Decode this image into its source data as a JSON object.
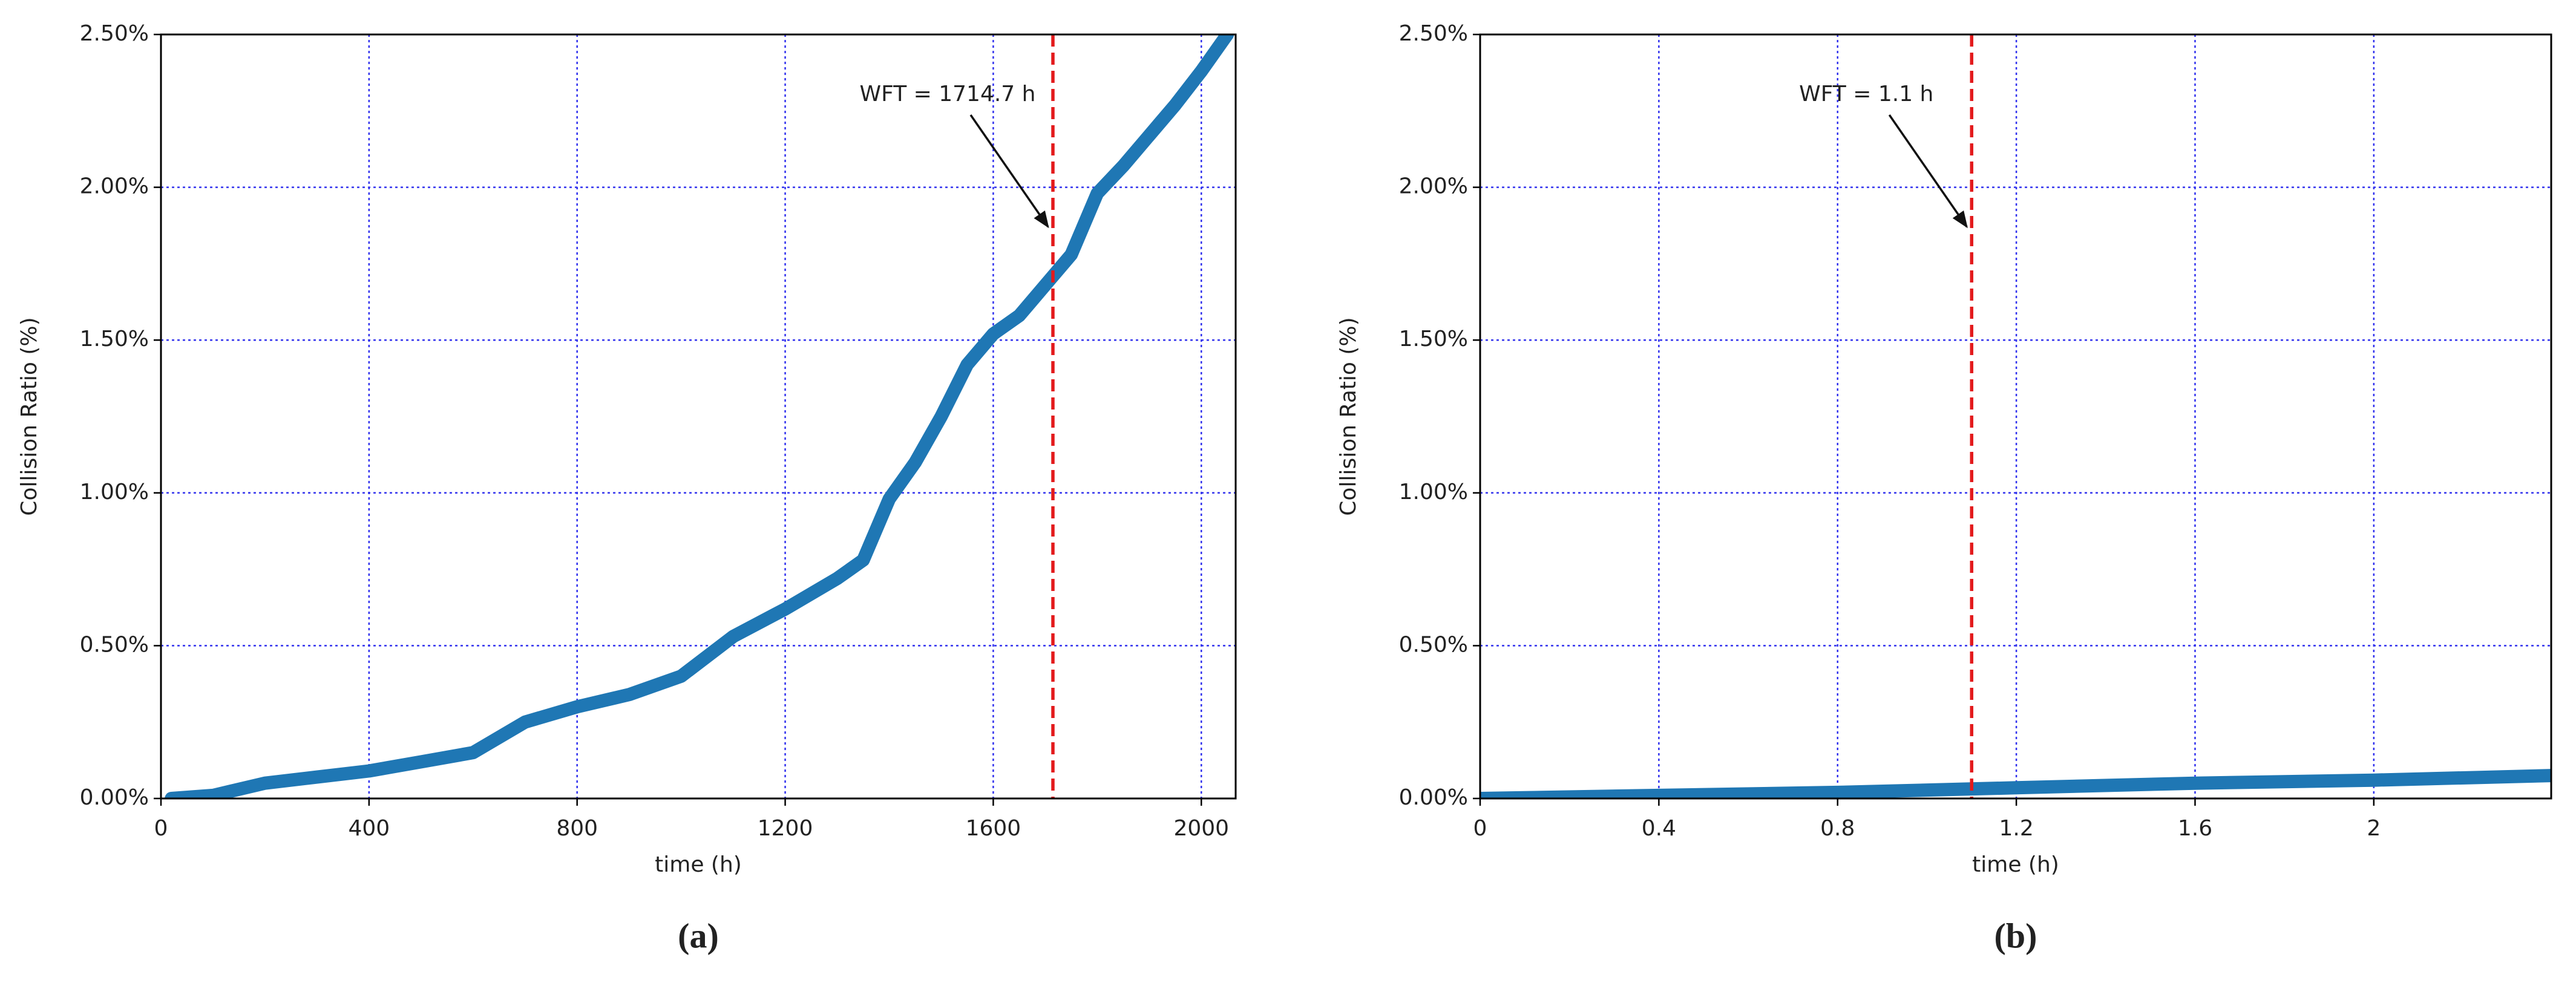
{
  "chart_data": [
    {
      "type": "line",
      "xlabel": "time (h)",
      "ylabel": "Collision Ratio (%)",
      "panel_label": "(a)",
      "xlim": [
        0,
        2066
      ],
      "xticks": [
        0,
        400,
        800,
        1200,
        1600,
        2000
      ],
      "ylim": [
        0,
        2.5
      ],
      "yticks": [
        {
          "value": 0,
          "label": "0.00%"
        },
        {
          "value": 0.5,
          "label": "0.50%"
        },
        {
          "value": 1,
          "label": "1.00%"
        },
        {
          "value": 1.5,
          "label": "1.50%"
        },
        {
          "value": 2,
          "label": "2.00%"
        },
        {
          "value": 2.5,
          "label": "2.50%"
        }
      ],
      "grid": true,
      "color": "#1f77b4",
      "x": [
        20,
        100,
        200,
        300,
        400,
        500,
        600,
        700,
        800,
        900,
        1000,
        1100,
        1200,
        1300,
        1350,
        1400,
        1450,
        1500,
        1550,
        1600,
        1650,
        1700,
        1750,
        1800,
        1850,
        1900,
        1950,
        2000,
        2050
      ],
      "values": [
        0.0,
        0.01,
        0.05,
        0.07,
        0.09,
        0.12,
        0.15,
        0.25,
        0.3,
        0.34,
        0.4,
        0.53,
        0.62,
        0.72,
        0.78,
        0.98,
        1.1,
        1.25,
        1.42,
        1.52,
        1.58,
        1.68,
        1.78,
        1.98,
        2.07,
        2.17,
        2.27,
        2.38,
        2.5
      ],
      "vline": {
        "x": 1714.7,
        "color": "#e31a1c",
        "text": "WFT = 1714.7 h"
      }
    },
    {
      "type": "line",
      "xlabel": "time (h)",
      "ylabel": "Collision Ratio (%)",
      "panel_label": "(b)",
      "xlim": [
        0,
        2.397
      ],
      "xticks": [
        0,
        0.4,
        0.8,
        1.2,
        1.6,
        2
      ],
      "ylim": [
        0,
        2.5
      ],
      "yticks": [
        {
          "value": 0,
          "label": "0.00%"
        },
        {
          "value": 0.5,
          "label": "0.50%"
        },
        {
          "value": 1,
          "label": "1.00%"
        },
        {
          "value": 1.5,
          "label": "1.50%"
        },
        {
          "value": 2,
          "label": "2.00%"
        },
        {
          "value": 2.5,
          "label": "2.50%"
        }
      ],
      "grid": true,
      "color": "#1f77b4",
      "x": [
        0,
        0.4,
        0.8,
        1.2,
        1.6,
        2.0,
        2.4
      ],
      "values": [
        0,
        0.01,
        0.02,
        0.035,
        0.05,
        0.06,
        0.075
      ],
      "vline": {
        "x": 1.1,
        "color": "#e31a1c",
        "text": "WFT = 1.1 h"
      }
    }
  ]
}
